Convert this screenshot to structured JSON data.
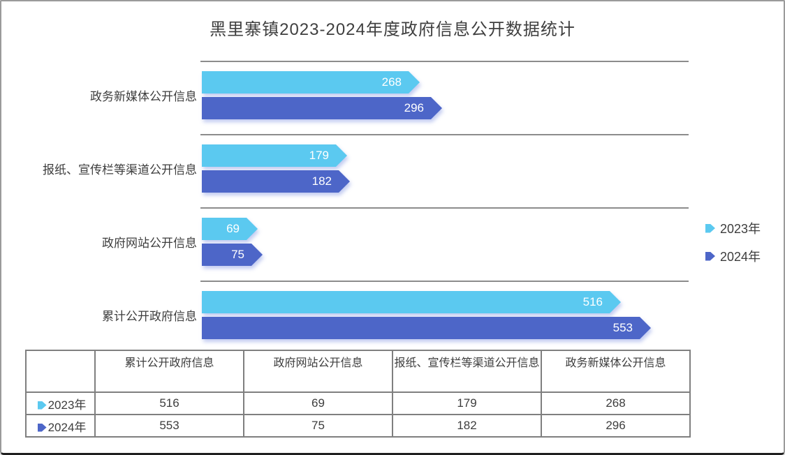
{
  "title": "黑里寨镇2023-2024年度政府信息公开数据统计",
  "colors": {
    "series_2023": "#5bc9f0",
    "series_2024": "#4d66c8",
    "gridline": "#8c8c8c",
    "table_border": "#7f7f7f",
    "text": "#3d3d3d",
    "bar_value_text": "#ffffff"
  },
  "chart_data": {
    "type": "bar",
    "orientation": "horizontal",
    "title": "黑里寨镇2023-2024年度政府信息公开数据统计",
    "categories": [
      "政务新媒体公开信息",
      "报纸、宣传栏等渠道公开信息",
      "政府网站公开信息",
      "累计公开政府信息"
    ],
    "series": [
      {
        "name": "2023年",
        "color": "#5bc9f0",
        "values": [
          268,
          179,
          69,
          516
        ]
      },
      {
        "name": "2024年",
        "color": "#4d66c8",
        "values": [
          296,
          182,
          75,
          553
        ]
      }
    ],
    "xlim": [
      0,
      553
    ],
    "grid": "category-separators",
    "legend_position": "right",
    "value_labels": "inside-end"
  },
  "legend": {
    "items": [
      {
        "label": "2023年",
        "color": "#5bc9f0"
      },
      {
        "label": "2024年",
        "color": "#4d66c8"
      }
    ]
  },
  "table": {
    "columns": [
      "累计公开政府信息",
      "政府网站公开信息",
      "报纸、宣传栏等渠道公开信息",
      "政务新媒体公开信息"
    ],
    "rows": [
      {
        "label": "2023年",
        "color": "#5bc9f0",
        "values": [
          "516",
          "69",
          "179",
          "268"
        ]
      },
      {
        "label": "2024年",
        "color": "#4d66c8",
        "values": [
          "553",
          "75",
          "182",
          "296"
        ]
      }
    ]
  }
}
